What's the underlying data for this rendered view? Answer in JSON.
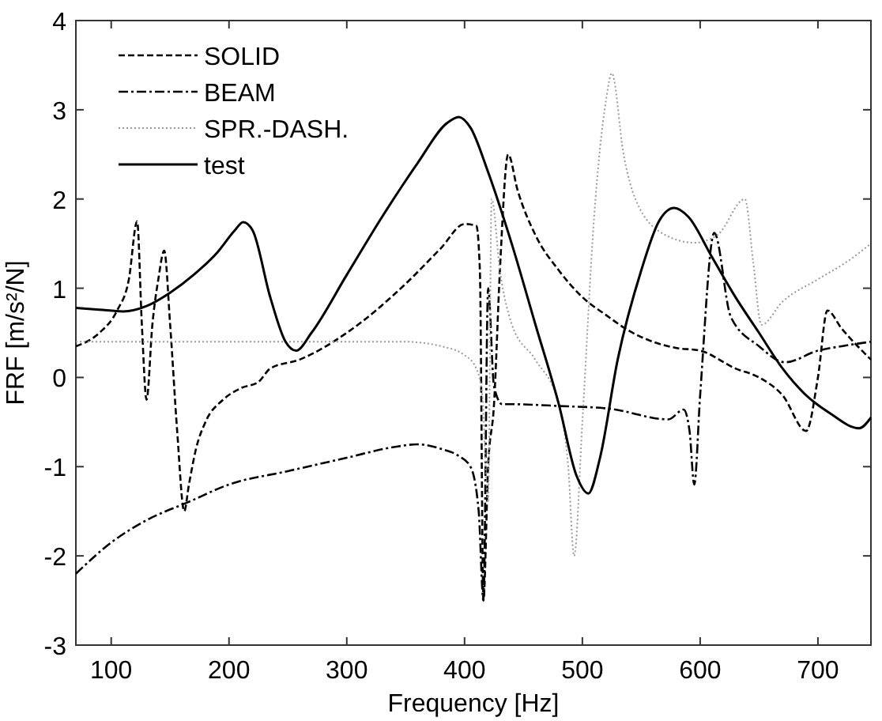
{
  "chart_data": {
    "type": "line",
    "xlabel": "Frequency [Hz]",
    "ylabel": "FRF [m/s²/N]",
    "xlim": [
      70,
      745
    ],
    "ylim": [
      -3,
      4
    ],
    "xticks": [
      100,
      200,
      300,
      400,
      500,
      600,
      700
    ],
    "yticks": [
      -3,
      -2,
      -1,
      0,
      1,
      2,
      3,
      4
    ],
    "legend": "top left",
    "grid": false,
    "series": [
      {
        "name": "SOLID",
        "color": "#000000",
        "line_style": "dashed",
        "x": [
          70,
          90,
          105,
          115,
          122,
          126,
          130,
          135,
          140,
          145,
          150,
          156,
          162,
          166,
          172,
          180,
          195,
          210,
          225,
          235,
          260,
          300,
          350,
          380,
          400,
          410,
          413,
          416,
          420,
          425,
          430,
          437,
          445,
          460,
          480,
          500,
          520,
          540,
          560,
          580,
          600,
          630,
          650,
          670,
          690,
          700,
          708,
          720,
          745
        ],
        "values": [
          0.35,
          0.5,
          0.75,
          1.1,
          1.75,
          0.6,
          -0.25,
          0.6,
          1.1,
          1.42,
          0.6,
          -0.6,
          -1.5,
          -1.2,
          -0.8,
          -0.5,
          -0.25,
          -0.12,
          -0.05,
          0.1,
          0.2,
          0.5,
          1.05,
          1.45,
          1.72,
          1.7,
          1.2,
          -2.5,
          -1.0,
          -0.3,
          1.2,
          2.5,
          2.1,
          1.6,
          1.2,
          0.9,
          0.7,
          0.52,
          0.4,
          0.33,
          0.3,
          0.1,
          0.0,
          -0.2,
          -0.6,
          0.0,
          0.75,
          0.55,
          0.2
        ]
      },
      {
        "name": "BEAM",
        "color": "#000000",
        "line_style": "dashdot",
        "x": [
          70,
          100,
          130,
          165,
          200,
          250,
          300,
          340,
          360,
          380,
          395,
          405,
          412,
          416,
          420,
          425,
          432,
          440,
          480,
          523,
          573,
          586,
          591,
          595,
          600,
          612,
          626,
          650,
          672,
          700,
          720,
          745
        ],
        "values": [
          -2.2,
          -1.85,
          -1.6,
          -1.4,
          -1.2,
          -1.05,
          -0.9,
          -0.78,
          -0.75,
          -0.8,
          -0.88,
          -1.0,
          -1.5,
          -2.5,
          1.0,
          -0.1,
          -0.3,
          -0.3,
          -0.32,
          -0.35,
          -0.47,
          -0.36,
          -0.6,
          -1.2,
          -0.2,
          1.62,
          0.68,
          0.35,
          0.17,
          0.3,
          0.35,
          0.4
        ]
      },
      {
        "name": "SPR.-DASH.",
        "color": "#999999",
        "line_style": "dotted",
        "x": [
          70,
          150,
          250,
          350,
          380,
          400,
          410,
          415,
          420,
          423,
          430,
          440,
          460,
          480,
          488,
          493,
          500,
          510,
          520,
          525,
          535,
          545,
          570,
          595,
          615,
          638,
          645,
          652,
          670,
          700,
          725,
          745
        ],
        "values": [
          0.4,
          0.4,
          0.4,
          0.4,
          0.35,
          0.25,
          0.1,
          -0.2,
          -1.4,
          2.0,
          1.2,
          0.6,
          0.2,
          -0.3,
          -1.0,
          -2.0,
          -0.5,
          1.8,
          3.1,
          3.41,
          2.5,
          2.0,
          1.6,
          1.51,
          1.6,
          2.0,
          1.3,
          0.59,
          0.85,
          1.1,
          1.3,
          1.5
        ]
      },
      {
        "name": "test",
        "color": "#000000",
        "line_style": "solid",
        "x": [
          70,
          90,
          110,
          130,
          150,
          170,
          190,
          205,
          212,
          220,
          235,
          248,
          257,
          270,
          300,
          330,
          360,
          385,
          395,
          405,
          420,
          440,
          460,
          480,
          495,
          505,
          515,
          530,
          550,
          565,
          578,
          590,
          610,
          630,
          650,
          670,
          690,
          710,
          735,
          745
        ],
        "values": [
          0.78,
          0.76,
          0.74,
          0.8,
          0.95,
          1.15,
          1.4,
          1.65,
          1.74,
          1.65,
          0.9,
          0.4,
          0.3,
          0.5,
          1.15,
          1.8,
          2.4,
          2.85,
          2.92,
          2.8,
          2.3,
          1.5,
          0.6,
          -0.3,
          -1.1,
          -1.3,
          -0.9,
          0.2,
          1.2,
          1.75,
          1.9,
          1.8,
          1.35,
          0.9,
          0.5,
          0.1,
          -0.2,
          -0.4,
          -0.57,
          -0.45
        ]
      }
    ]
  }
}
